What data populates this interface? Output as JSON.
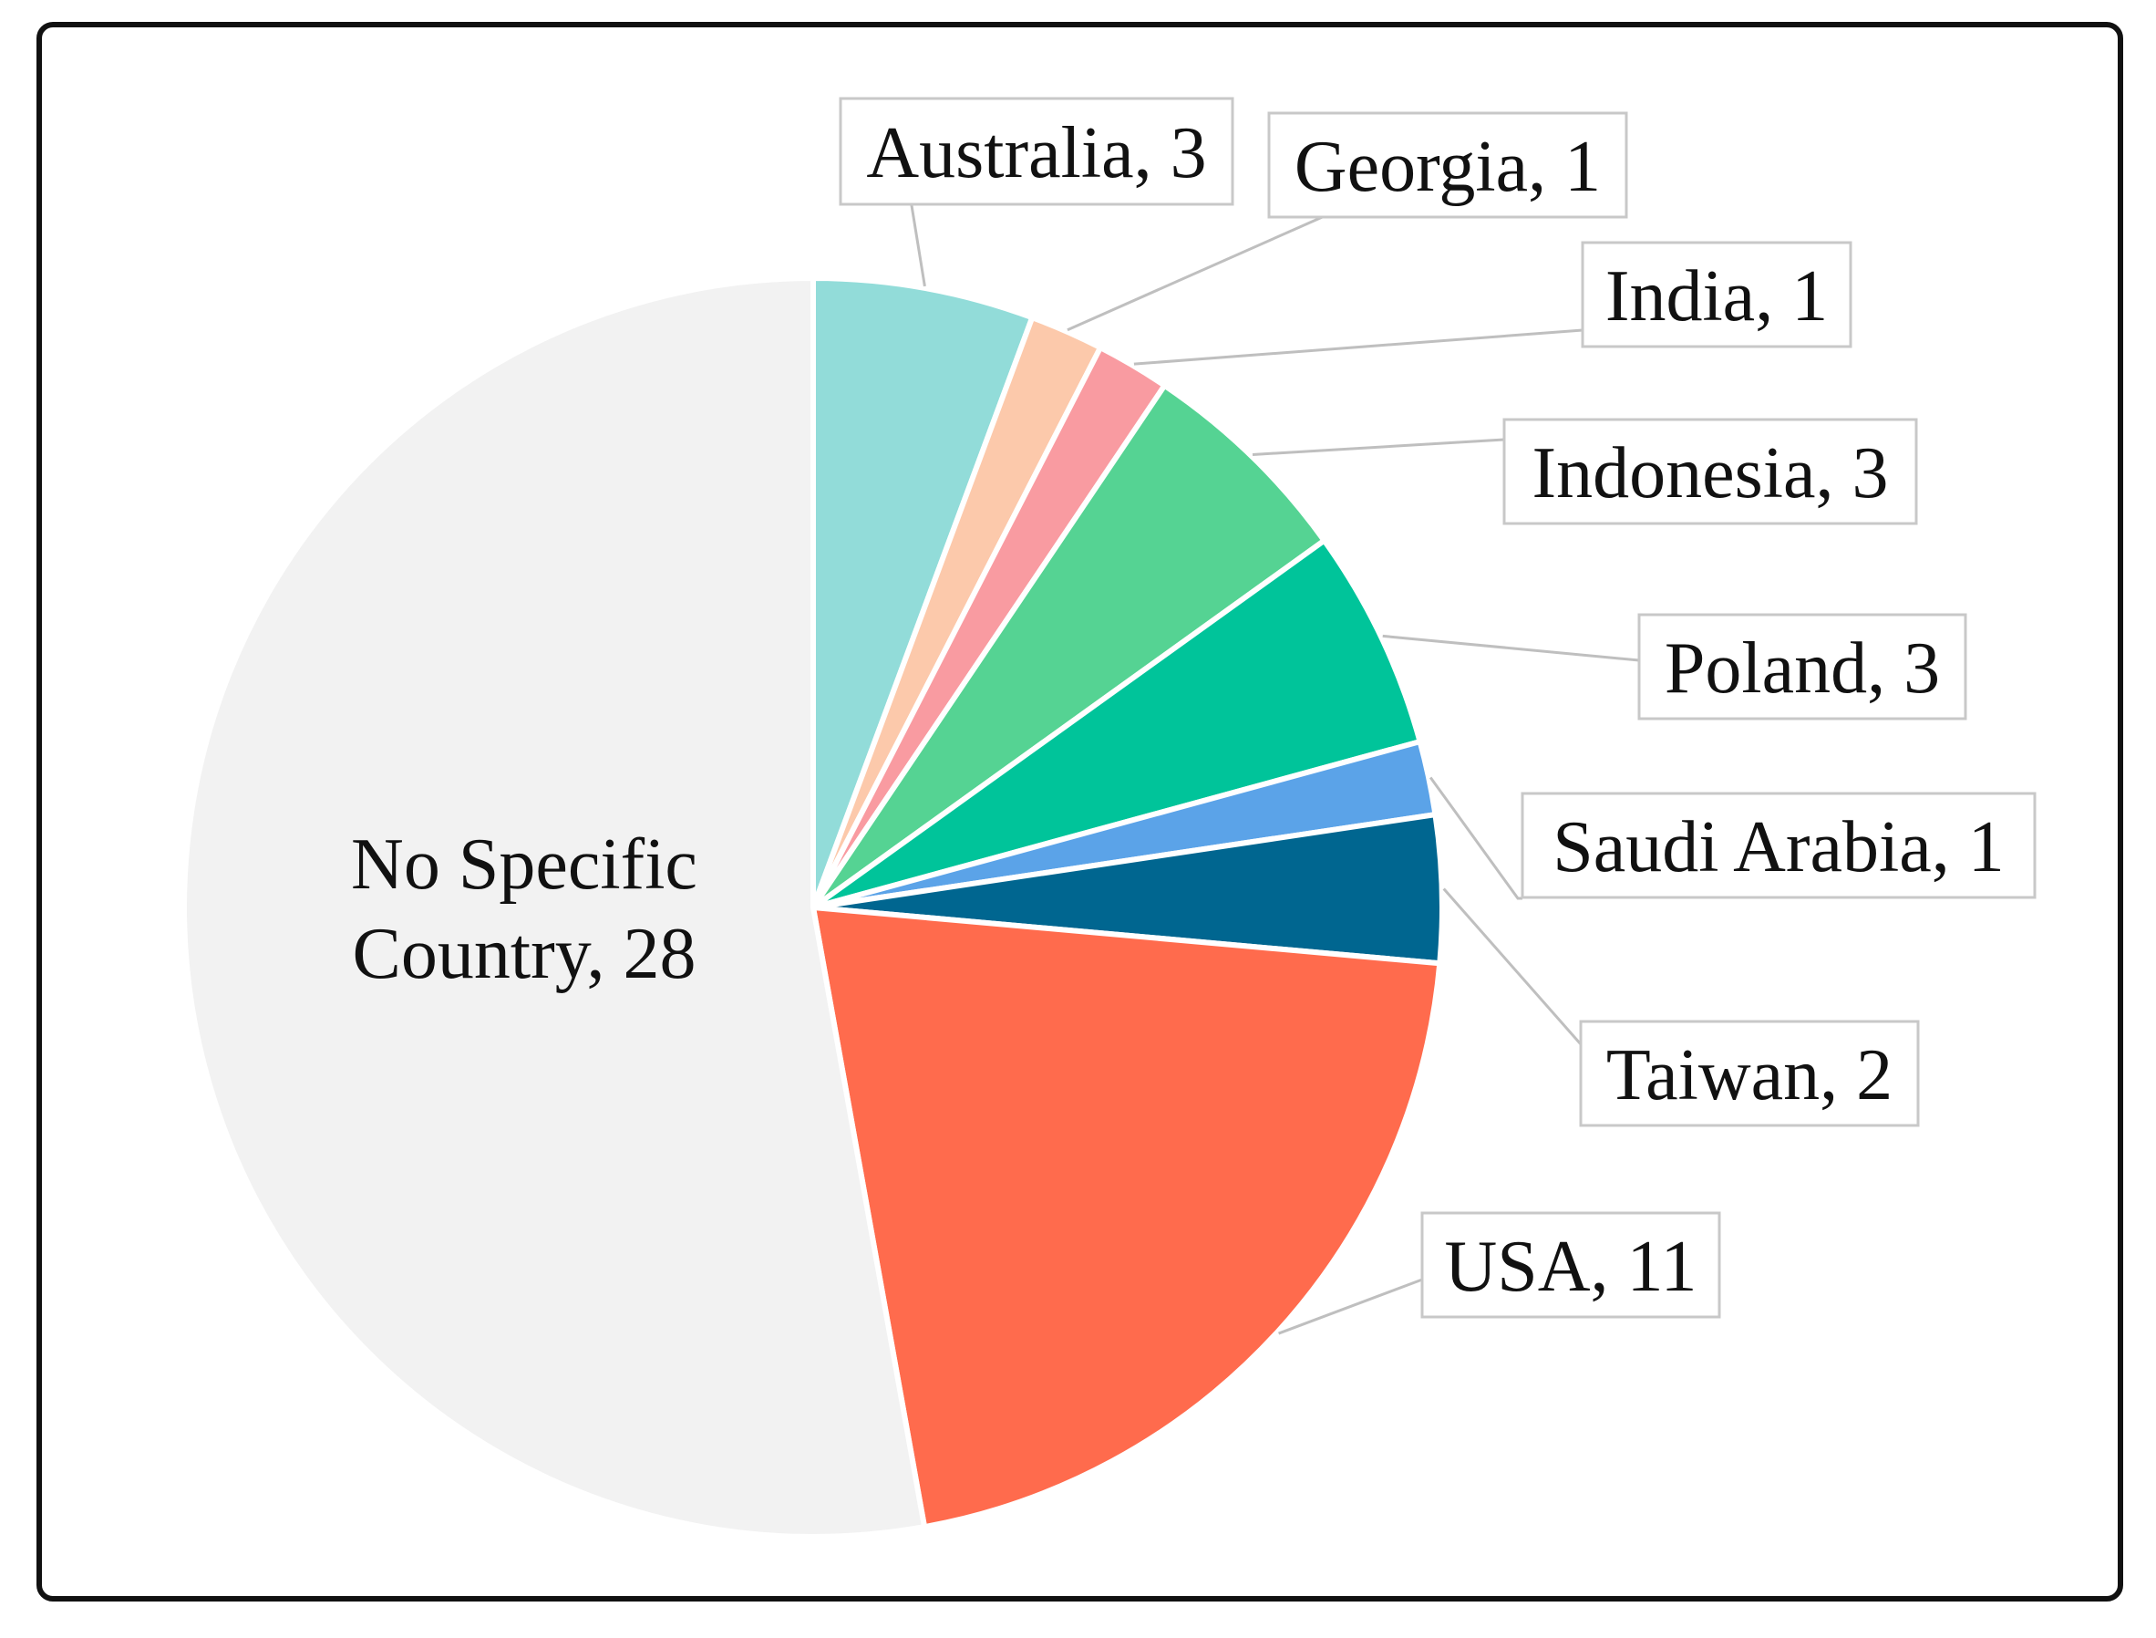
{
  "chart_data": {
    "type": "pie",
    "slices": [
      {
        "label": "Australia, 3",
        "value": 3,
        "color": "#92dcd9"
      },
      {
        "label": "Georgia, 1",
        "value": 1,
        "color": "#fcc9ab"
      },
      {
        "label": "India, 1",
        "value": 1,
        "color": "#f99ba1"
      },
      {
        "label": "Indonesia, 3",
        "value": 3,
        "color": "#55d393"
      },
      {
        "label": "Poland, 3",
        "value": 3,
        "color": "#00c49a"
      },
      {
        "label": "Saudi Arabia, 1",
        "value": 1,
        "color": "#5ba3e8"
      },
      {
        "label": "Taiwan, 2",
        "value": 2,
        "color": "#006690"
      },
      {
        "label": "USA, 11",
        "value": 11,
        "color": "#ff6b4d"
      },
      {
        "label": "No Specific Country, 28",
        "label_lines": [
          "No Specific",
          "Country, 28"
        ],
        "value": 28,
        "color": "#f2f2f2"
      }
    ]
  }
}
